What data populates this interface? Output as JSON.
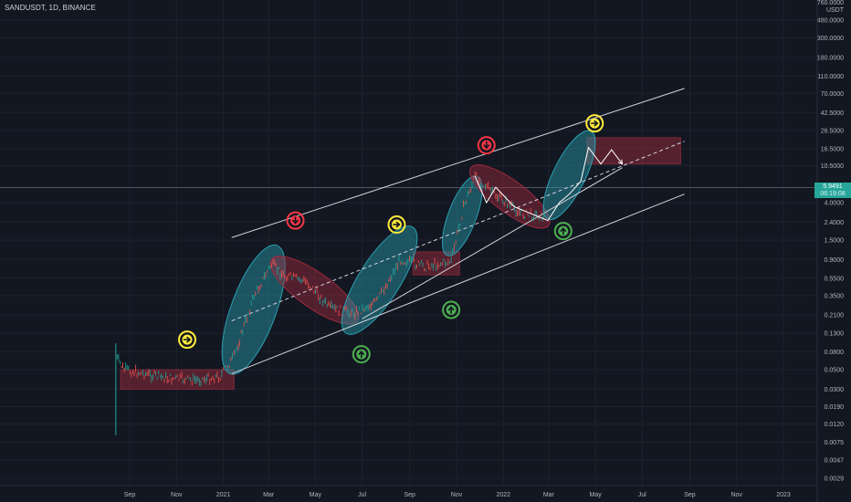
{
  "header": {
    "symbol": "SANDUSDT, 1D, BINANCE"
  },
  "price_axis": {
    "top_label": "760.0000",
    "unit": "USDT",
    "labels": [
      "480.0000",
      "300.0000",
      "180.0000",
      "110.0000",
      "70.0000",
      "42.5000",
      "26.5000",
      "16.5000",
      "10.5000",
      "4.0000",
      "2.4000",
      "1.5000",
      "0.9000",
      "0.5500",
      "0.3500",
      "0.2100",
      "0.1300",
      "0.0800",
      "0.0500",
      "0.0300",
      "0.0190",
      "0.0120",
      "0.0075",
      "0.0047",
      "0.0029"
    ]
  },
  "time_axis": {
    "labels": [
      "Sep",
      "Nov",
      "2021",
      "Mar",
      "May",
      "Jul",
      "Sep",
      "Nov",
      "2022",
      "Mar",
      "May",
      "Jul",
      "Sep",
      "Nov",
      "2023"
    ]
  },
  "last_price": {
    "value": "5.9491",
    "countdown": "06:19:08",
    "color": "#26a69a"
  },
  "colors": {
    "background": "#131722",
    "grid": "#1e222d",
    "up_candle": "#26a69a",
    "down_candle": "#ef5350",
    "trend_line": "#d1d4dc",
    "ellipse_teal": "#2a9fb0",
    "ellipse_red": "#a02a3d",
    "zone_red": "#8e2a3a",
    "icon_yellow": "#ffeb3b",
    "icon_red": "#f23645",
    "icon_green": "#4caf50"
  },
  "chart_data": {
    "type": "candlestick",
    "title": "",
    "xlabel": "",
    "ylabel": "",
    "y_scale": "log",
    "ylim": [
      0.0029,
      760
    ],
    "x_range": [
      "2020-09",
      "2023-01"
    ],
    "grid": true,
    "price_path": [
      {
        "date": "2020-08-14",
        "close": 0.07
      },
      {
        "date": "2020-08-25",
        "close": 0.05
      },
      {
        "date": "2020-09-20",
        "close": 0.045
      },
      {
        "date": "2020-10-20",
        "close": 0.04
      },
      {
        "date": "2020-11-25",
        "close": 0.038
      },
      {
        "date": "2020-12-28",
        "close": 0.042
      },
      {
        "date": "2021-01-15",
        "close": 0.07
      },
      {
        "date": "2021-02-10",
        "close": 0.35
      },
      {
        "date": "2021-03-05",
        "close": 0.8
      },
      {
        "date": "2021-03-20",
        "close": 0.6
      },
      {
        "date": "2021-04-20",
        "close": 0.5
      },
      {
        "date": "2021-05-20",
        "close": 0.25
      },
      {
        "date": "2021-06-20",
        "close": 0.22
      },
      {
        "date": "2021-07-20",
        "close": 0.3
      },
      {
        "date": "2021-08-20",
        "close": 0.9
      },
      {
        "date": "2021-09-20",
        "close": 0.75
      },
      {
        "date": "2021-10-25",
        "close": 0.85
      },
      {
        "date": "2021-11-10",
        "close": 3.5
      },
      {
        "date": "2021-11-25",
        "close": 8.0
      },
      {
        "date": "2021-12-20",
        "close": 5.0
      },
      {
        "date": "2022-01-25",
        "close": 3.0
      },
      {
        "date": "2022-02-25",
        "close": 2.8
      }
    ],
    "projection_path": [
      {
        "date": "2021-11-25",
        "price": 8.0
      },
      {
        "date": "2021-12-10",
        "price": 4.0
      },
      {
        "date": "2021-12-22",
        "price": 6.0
      },
      {
        "date": "2022-01-15",
        "price": 3.6
      },
      {
        "date": "2022-02-28",
        "price": 2.5
      },
      {
        "date": "2022-03-15",
        "price": 4.0
      },
      {
        "date": "2022-03-28",
        "price": 5.0
      },
      {
        "date": "2022-04-12",
        "price": 7.0
      },
      {
        "date": "2022-04-22",
        "price": 17.0
      },
      {
        "date": "2022-05-08",
        "price": 11.0
      },
      {
        "date": "2022-05-22",
        "price": 16.0
      },
      {
        "date": "2022-06-05",
        "price": 11.0
      }
    ],
    "channel_lines": [
      {
        "kind": "upper",
        "from": {
          "date": "2021-01-12",
          "price": 1.6
        },
        "to": {
          "date": "2022-08-25",
          "price": 80
        }
      },
      {
        "kind": "lower",
        "from": {
          "date": "2021-01-12",
          "price": 0.045
        },
        "to": {
          "date": "2022-08-25",
          "price": 5.0
        }
      },
      {
        "kind": "mid-dashed",
        "from": {
          "date": "2021-01-12",
          "price": 0.18
        },
        "to": {
          "date": "2022-08-25",
          "price": 20
        }
      },
      {
        "kind": "support",
        "from": {
          "date": "2021-07-01",
          "price": 0.19
        },
        "to": {
          "date": "2022-06-05",
          "price": 10
        }
      }
    ],
    "zones": [
      {
        "from": "2020-08-20",
        "to": "2021-01-15",
        "price_low": 0.03,
        "price_high": 0.05
      },
      {
        "from": "2021-09-05",
        "to": "2021-11-05",
        "price_low": 0.6,
        "price_high": 1.1
      },
      {
        "from": "2022-04-20",
        "to": "2022-08-20",
        "price_low": 11,
        "price_high": 22
      }
    ],
    "ellipses": [
      {
        "color": "teal",
        "from": {
          "date": "2021-01-10",
          "price": 0.045
        },
        "to": {
          "date": "2021-03-12",
          "price": 1.3
        }
      },
      {
        "color": "red",
        "from": {
          "date": "2021-03-05",
          "price": 0.9
        },
        "to": {
          "date": "2021-06-25",
          "price": 0.18
        }
      },
      {
        "color": "teal",
        "from": {
          "date": "2021-06-10",
          "price": 0.13
        },
        "to": {
          "date": "2021-09-05",
          "price": 2.1
        }
      },
      {
        "color": "teal",
        "from": {
          "date": "2021-10-20",
          "price": 1.0
        },
        "to": {
          "date": "2021-11-28",
          "price": 8.0
        }
      },
      {
        "color": "red",
        "from": {
          "date": "2021-11-20",
          "price": 10
        },
        "to": {
          "date": "2022-03-01",
          "price": 2.2
        }
      },
      {
        "color": "teal",
        "from": {
          "date": "2022-02-28",
          "price": 2.6
        },
        "to": {
          "date": "2022-04-25",
          "price": 26
        }
      }
    ],
    "markers": [
      {
        "type": "arrow-right",
        "color": "yellow",
        "date": "2020-11-15",
        "price": 0.11
      },
      {
        "type": "arrow-down",
        "color": "red",
        "date": "2021-04-05",
        "price": 2.5
      },
      {
        "type": "arrow-up",
        "color": "green",
        "date": "2021-06-30",
        "price": 0.075
      },
      {
        "type": "arrow-right",
        "color": "yellow",
        "date": "2021-08-15",
        "price": 2.25
      },
      {
        "type": "arrow-up",
        "color": "green",
        "date": "2021-10-25",
        "price": 0.24
      },
      {
        "type": "arrow-down",
        "color": "red",
        "date": "2021-12-10",
        "price": 18
      },
      {
        "type": "arrow-up",
        "color": "green",
        "date": "2022-03-20",
        "price": 1.9
      },
      {
        "type": "arrow-right",
        "color": "yellow",
        "date": "2022-04-30",
        "price": 32
      }
    ]
  }
}
